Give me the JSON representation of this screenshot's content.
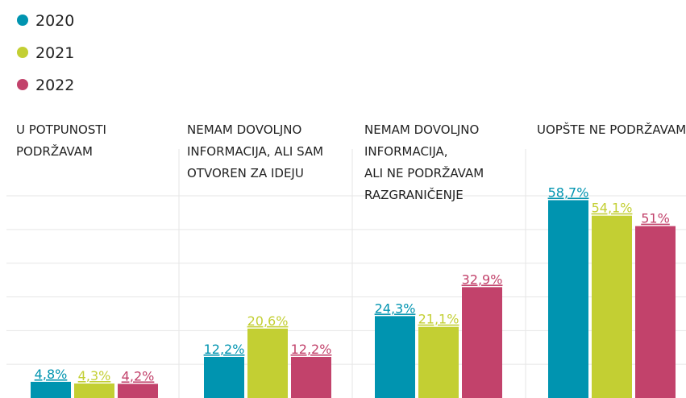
{
  "chart_data": {
    "type": "bar",
    "categories": [
      [
        "U POTPUNOSTI",
        "PODRŽAVAM"
      ],
      [
        "NEMAM DOVOLJNO",
        "INFORMACIJA, ALI SAM",
        "OTVOREN ZA IDEJU"
      ],
      [
        "NEMAM DOVOLJNO",
        "INFORMACIJA,",
        "ALI NE PODRŽAVAM",
        "RAZGRANIČENJE"
      ],
      [
        "UOPŠTE NE PODRŽAVAM"
      ]
    ],
    "series": [
      {
        "name": "2020",
        "color": "#0094b0",
        "values": [
          4.8,
          12.2,
          24.3,
          58.7
        ],
        "value_labels": [
          "4,8%",
          "12,2%",
          "24,3%",
          "58,7%"
        ]
      },
      {
        "name": "2021",
        "color": "#c3cf33",
        "values": [
          4.3,
          20.6,
          21.1,
          54.1
        ],
        "value_labels": [
          "4,3%",
          "20,6%",
          "21,1%",
          "54,1%"
        ]
      },
      {
        "name": "2022",
        "color": "#c2426b",
        "values": [
          4.2,
          12.2,
          32.9,
          51
        ],
        "value_labels": [
          "4,2%",
          "12,2%",
          "32,9%",
          "51%"
        ]
      }
    ],
    "ylim": [
      0,
      60
    ],
    "yticks": [
      10,
      20,
      30,
      40,
      50,
      60
    ],
    "grid": true
  }
}
